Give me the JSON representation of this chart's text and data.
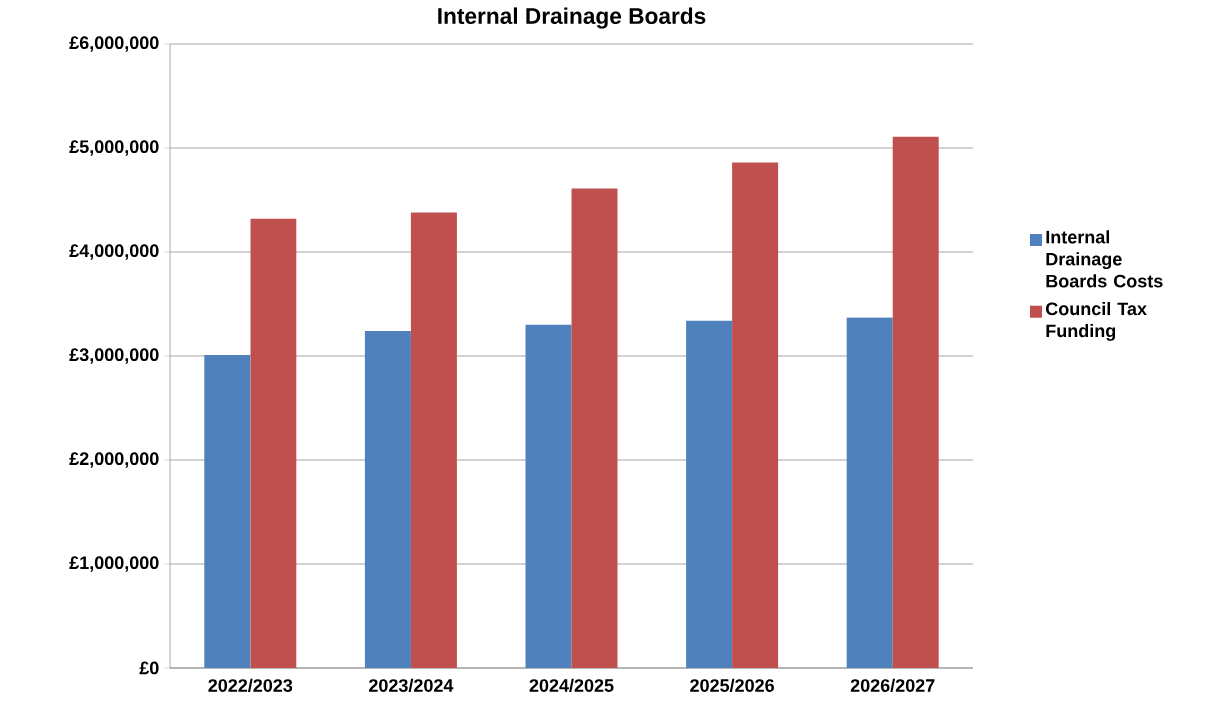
{
  "chart_data": {
    "type": "bar",
    "title": "Internal Drainage Boards",
    "categories": [
      "2022/2023",
      "2023/2024",
      "2024/2025",
      "2025/2026",
      "2026/2027"
    ],
    "series": [
      {
        "name": "Internal Drainage Boards Costs",
        "color": "#4f81bd",
        "values": [
          3010000,
          3240000,
          3300000,
          3340000,
          3370000
        ]
      },
      {
        "name": "Council Tax Funding",
        "color": "#c0504d",
        "values": [
          4320000,
          4380000,
          4610000,
          4860000,
          5110000
        ]
      }
    ],
    "ylim": [
      0,
      6000000
    ],
    "yticks": [
      {
        "value": 0,
        "label": "£0"
      },
      {
        "value": 1000000,
        "label": "£1,000,000"
      },
      {
        "value": 2000000,
        "label": "£2,000,000"
      },
      {
        "value": 3000000,
        "label": "£3,000,000"
      },
      {
        "value": 4000000,
        "label": "£4,000,000"
      },
      {
        "value": 5000000,
        "label": "£5,000,000"
      },
      {
        "value": 6000000,
        "label": "£6,000,000"
      }
    ],
    "grid": "y",
    "legend": "right"
  }
}
